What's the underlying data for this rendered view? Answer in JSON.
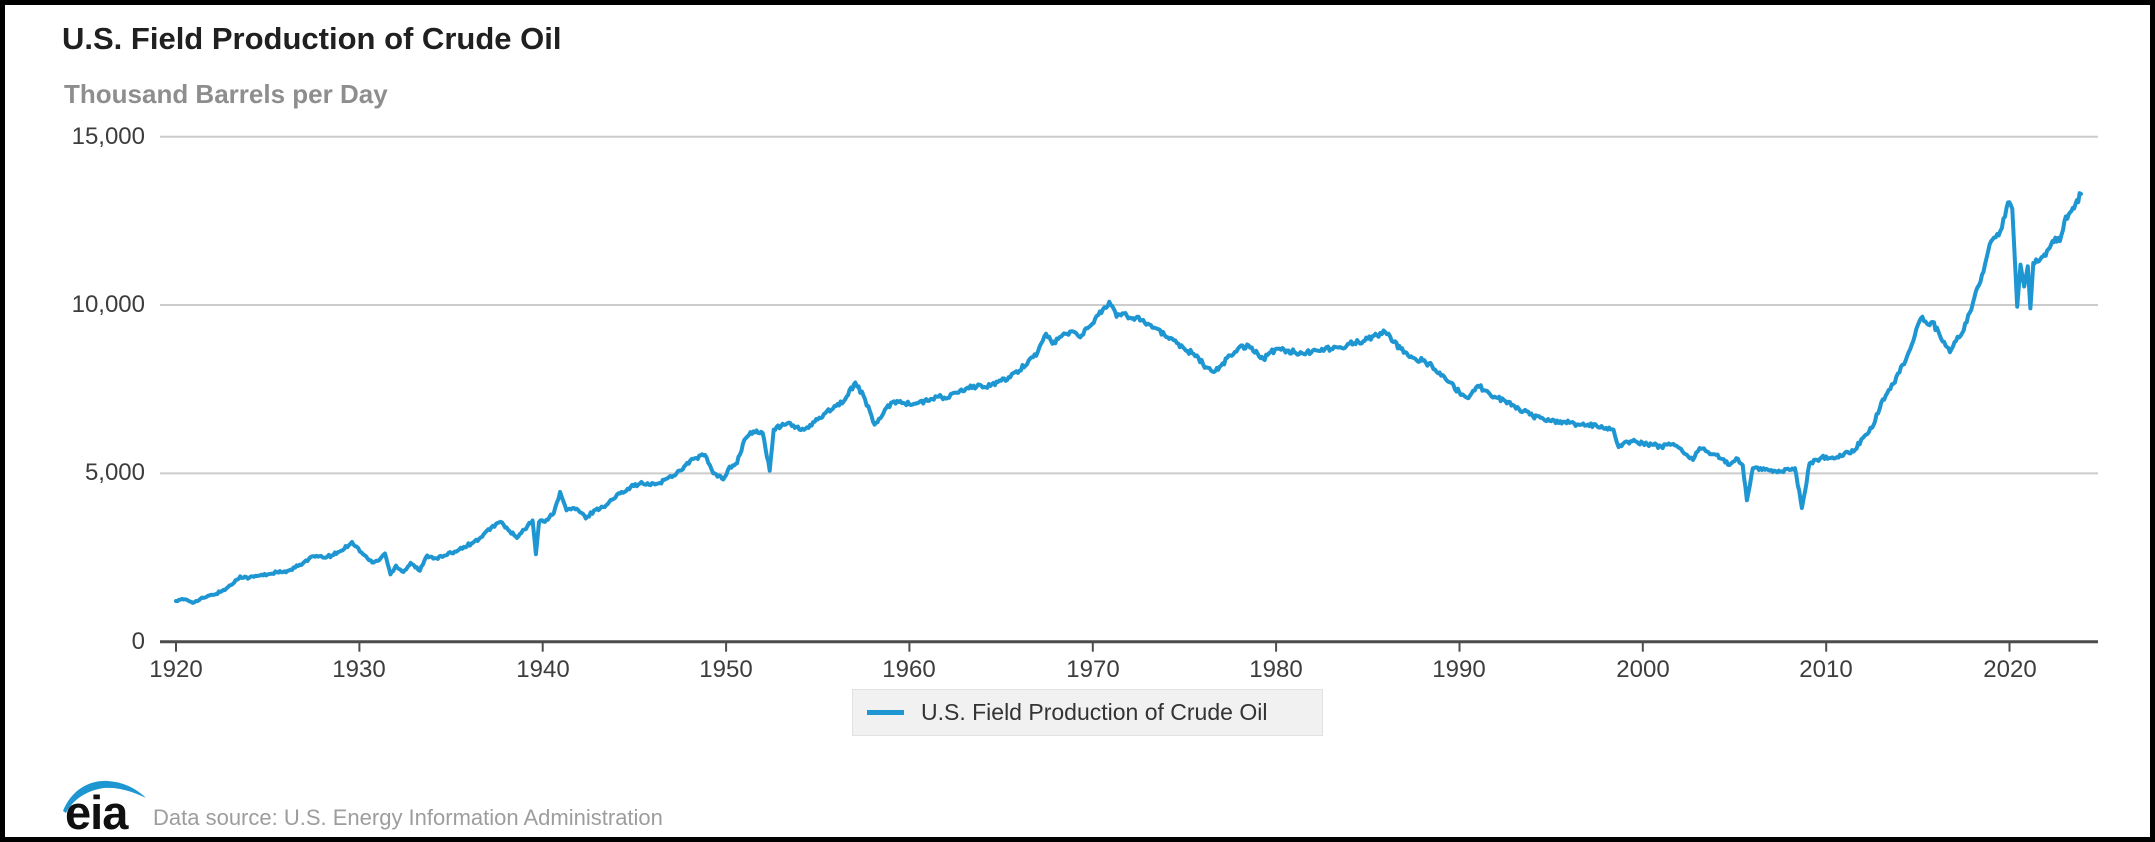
{
  "header": {
    "title": "U.S. Field Production of Crude Oil",
    "subtitle": "Thousand Barrels per Day"
  },
  "legend": {
    "label": "U.S. Field Production of Crude Oil"
  },
  "footer": {
    "logo_text": "eia",
    "source_note": "Data source: U.S. Energy Information Administration"
  },
  "colors": {
    "line": "#1e96d2",
    "grid": "#cccccc",
    "axis": "#4c4c4c",
    "tick_label": "#3d3d3d",
    "title": "#202020",
    "subtitle": "#8e8e8e",
    "legend_bg": "#f1f1f1",
    "source_text": "#9d9d9d",
    "logo_blue": "#1e96d2"
  },
  "chart_data": {
    "type": "line",
    "title": "U.S. Field Production of Crude Oil",
    "xlabel": "",
    "ylabel": "Thousand Barrels per Day",
    "xlim": [
      1919.1,
      2024.8
    ],
    "ylim": [
      0,
      15000
    ],
    "grid": "horizontal",
    "legend_position": "bottom-center",
    "x_ticks": [
      1920,
      1930,
      1940,
      1950,
      1960,
      1970,
      1980,
      1990,
      2000,
      2010,
      2020
    ],
    "y_ticks": [
      {
        "value": 15000,
        "label": "15,000"
      },
      {
        "value": 10000,
        "label": "10,000"
      },
      {
        "value": 5000,
        "label": "5,000"
      },
      {
        "value": 0,
        "label": "0"
      }
    ],
    "texture": {
      "monthly_jitter": 70
    },
    "series": [
      {
        "name": "U.S. Field Production of Crude Oil",
        "unit": "thousand barrels per day",
        "points": [
          [
            1920.0,
            1210
          ],
          [
            1920.5,
            1260
          ],
          [
            1921.0,
            1170
          ],
          [
            1921.5,
            1300
          ],
          [
            1922.0,
            1390
          ],
          [
            1922.5,
            1500
          ],
          [
            1923.0,
            1680
          ],
          [
            1923.5,
            1940
          ],
          [
            1924.0,
            1900
          ],
          [
            1924.5,
            1960
          ],
          [
            1925.0,
            2000
          ],
          [
            1925.5,
            2070
          ],
          [
            1926.0,
            2060
          ],
          [
            1926.5,
            2200
          ],
          [
            1927.0,
            2370
          ],
          [
            1927.5,
            2540
          ],
          [
            1928.0,
            2500
          ],
          [
            1928.5,
            2560
          ],
          [
            1929.0,
            2700
          ],
          [
            1929.6,
            2960
          ],
          [
            1930.2,
            2600
          ],
          [
            1930.7,
            2350
          ],
          [
            1931.0,
            2400
          ],
          [
            1931.4,
            2620
          ],
          [
            1931.7,
            2000
          ],
          [
            1932.0,
            2260
          ],
          [
            1932.4,
            2070
          ],
          [
            1932.8,
            2340
          ],
          [
            1933.3,
            2110
          ],
          [
            1933.7,
            2560
          ],
          [
            1934.2,
            2480
          ],
          [
            1934.7,
            2560
          ],
          [
            1935.2,
            2680
          ],
          [
            1935.7,
            2820
          ],
          [
            1936.2,
            2940
          ],
          [
            1936.7,
            3120
          ],
          [
            1937.2,
            3400
          ],
          [
            1937.7,
            3560
          ],
          [
            1938.2,
            3280
          ],
          [
            1938.6,
            3080
          ],
          [
            1939.0,
            3330
          ],
          [
            1939.45,
            3600
          ],
          [
            1939.63,
            2600
          ],
          [
            1939.8,
            3550
          ],
          [
            1940.2,
            3620
          ],
          [
            1940.6,
            3810
          ],
          [
            1940.95,
            4450
          ],
          [
            1941.3,
            3900
          ],
          [
            1941.7,
            3970
          ],
          [
            1942.1,
            3830
          ],
          [
            1942.35,
            3660
          ],
          [
            1942.8,
            3900
          ],
          [
            1943.3,
            4000
          ],
          [
            1943.8,
            4220
          ],
          [
            1944.3,
            4450
          ],
          [
            1944.8,
            4600
          ],
          [
            1945.3,
            4700
          ],
          [
            1945.8,
            4660
          ],
          [
            1946.3,
            4700
          ],
          [
            1946.8,
            4850
          ],
          [
            1947.3,
            5000
          ],
          [
            1947.8,
            5250
          ],
          [
            1948.3,
            5450
          ],
          [
            1948.85,
            5550
          ],
          [
            1949.3,
            5000
          ],
          [
            1949.85,
            4820
          ],
          [
            1950.2,
            5200
          ],
          [
            1950.6,
            5300
          ],
          [
            1951.0,
            6000
          ],
          [
            1951.5,
            6250
          ],
          [
            1952.0,
            6200
          ],
          [
            1952.38,
            5080
          ],
          [
            1952.6,
            6300
          ],
          [
            1953.0,
            6400
          ],
          [
            1953.5,
            6500
          ],
          [
            1954.0,
            6300
          ],
          [
            1954.5,
            6350
          ],
          [
            1955.0,
            6600
          ],
          [
            1955.5,
            6850
          ],
          [
            1956.0,
            7000
          ],
          [
            1956.5,
            7200
          ],
          [
            1957.05,
            7700
          ],
          [
            1957.5,
            7300
          ],
          [
            1958.1,
            6450
          ],
          [
            1958.5,
            6700
          ],
          [
            1959.0,
            7100
          ],
          [
            1959.5,
            7150
          ],
          [
            1960.0,
            7050
          ],
          [
            1960.5,
            7100
          ],
          [
            1961.0,
            7150
          ],
          [
            1961.5,
            7280
          ],
          [
            1962.0,
            7220
          ],
          [
            1962.5,
            7400
          ],
          [
            1963.0,
            7450
          ],
          [
            1963.5,
            7600
          ],
          [
            1964.0,
            7550
          ],
          [
            1964.5,
            7650
          ],
          [
            1965.0,
            7750
          ],
          [
            1965.5,
            7850
          ],
          [
            1966.0,
            8050
          ],
          [
            1966.5,
            8350
          ],
          [
            1967.0,
            8600
          ],
          [
            1967.45,
            9150
          ],
          [
            1967.8,
            8850
          ],
          [
            1968.2,
            9050
          ],
          [
            1968.6,
            9150
          ],
          [
            1969.0,
            9200
          ],
          [
            1969.4,
            9100
          ],
          [
            1969.8,
            9350
          ],
          [
            1970.3,
            9700
          ],
          [
            1970.9,
            10100
          ],
          [
            1971.3,
            9650
          ],
          [
            1971.7,
            9750
          ],
          [
            1972.1,
            9600
          ],
          [
            1972.5,
            9650
          ],
          [
            1973.0,
            9450
          ],
          [
            1973.5,
            9300
          ],
          [
            1974.0,
            9050
          ],
          [
            1974.5,
            8950
          ],
          [
            1975.0,
            8700
          ],
          [
            1975.5,
            8550
          ],
          [
            1976.2,
            8150
          ],
          [
            1976.7,
            8050
          ],
          [
            1977.0,
            8200
          ],
          [
            1977.5,
            8500
          ],
          [
            1978.0,
            8750
          ],
          [
            1978.5,
            8800
          ],
          [
            1979.0,
            8550
          ],
          [
            1979.3,
            8400
          ],
          [
            1979.7,
            8600
          ],
          [
            1980.1,
            8700
          ],
          [
            1980.6,
            8650
          ],
          [
            1981.0,
            8600
          ],
          [
            1981.5,
            8550
          ],
          [
            1982.0,
            8650
          ],
          [
            1982.5,
            8700
          ],
          [
            1983.0,
            8700
          ],
          [
            1983.5,
            8750
          ],
          [
            1984.0,
            8850
          ],
          [
            1984.5,
            8900
          ],
          [
            1985.0,
            9000
          ],
          [
            1985.5,
            9100
          ],
          [
            1985.95,
            9200
          ],
          [
            1986.4,
            8900
          ],
          [
            1986.8,
            8700
          ],
          [
            1987.2,
            8500
          ],
          [
            1987.6,
            8400
          ],
          [
            1988.0,
            8350
          ],
          [
            1988.5,
            8200
          ],
          [
            1989.0,
            7900
          ],
          [
            1989.5,
            7700
          ],
          [
            1990.0,
            7400
          ],
          [
            1990.4,
            7250
          ],
          [
            1991.0,
            7600
          ],
          [
            1991.5,
            7450
          ],
          [
            1992.0,
            7250
          ],
          [
            1992.5,
            7150
          ],
          [
            1993.0,
            7000
          ],
          [
            1993.5,
            6850
          ],
          [
            1994.0,
            6700
          ],
          [
            1994.5,
            6650
          ],
          [
            1995.0,
            6550
          ],
          [
            1995.5,
            6550
          ],
          [
            1996.0,
            6500
          ],
          [
            1996.5,
            6450
          ],
          [
            1997.0,
            6450
          ],
          [
            1997.5,
            6400
          ],
          [
            1998.0,
            6350
          ],
          [
            1998.4,
            6300
          ],
          [
            1998.68,
            5780
          ],
          [
            1999.0,
            5920
          ],
          [
            1999.6,
            5950
          ],
          [
            2000.0,
            5900
          ],
          [
            2000.5,
            5850
          ],
          [
            2001.0,
            5800
          ],
          [
            2001.5,
            5850
          ],
          [
            2002.0,
            5750
          ],
          [
            2002.73,
            5400
          ],
          [
            2003.1,
            5750
          ],
          [
            2003.5,
            5650
          ],
          [
            2004.0,
            5550
          ],
          [
            2004.73,
            5250
          ],
          [
            2005.1,
            5450
          ],
          [
            2005.45,
            5250
          ],
          [
            2005.68,
            4200
          ],
          [
            2006.0,
            5150
          ],
          [
            2006.5,
            5100
          ],
          [
            2007.0,
            5100
          ],
          [
            2007.5,
            5050
          ],
          [
            2008.0,
            5100
          ],
          [
            2008.3,
            5150
          ],
          [
            2008.68,
            3970
          ],
          [
            2009.1,
            5300
          ],
          [
            2009.5,
            5400
          ],
          [
            2010.0,
            5500
          ],
          [
            2010.5,
            5450
          ],
          [
            2011.0,
            5600
          ],
          [
            2011.5,
            5650
          ],
          [
            2012.0,
            6050
          ],
          [
            2012.5,
            6350
          ],
          [
            2013.0,
            7100
          ],
          [
            2013.5,
            7500
          ],
          [
            2014.0,
            8000
          ],
          [
            2014.5,
            8600
          ],
          [
            2015.0,
            9400
          ],
          [
            2015.25,
            9650
          ],
          [
            2015.5,
            9450
          ],
          [
            2015.8,
            9500
          ],
          [
            2016.2,
            9100
          ],
          [
            2016.75,
            8600
          ],
          [
            2017.0,
            8900
          ],
          [
            2017.5,
            9250
          ],
          [
            2018.0,
            10050
          ],
          [
            2018.5,
            10900
          ],
          [
            2019.0,
            11900
          ],
          [
            2019.5,
            12200
          ],
          [
            2019.92,
            13050
          ],
          [
            2020.15,
            12850
          ],
          [
            2020.42,
            9950
          ],
          [
            2020.6,
            11200
          ],
          [
            2020.8,
            10550
          ],
          [
            2021.0,
            11150
          ],
          [
            2021.14,
            9900
          ],
          [
            2021.3,
            11250
          ],
          [
            2021.6,
            11300
          ],
          [
            2021.9,
            11500
          ],
          [
            2022.2,
            11700
          ],
          [
            2022.5,
            12000
          ],
          [
            2022.75,
            11900
          ],
          [
            2023.0,
            12500
          ],
          [
            2023.3,
            12750
          ],
          [
            2023.6,
            13000
          ],
          [
            2023.9,
            13300
          ]
        ]
      }
    ]
  }
}
